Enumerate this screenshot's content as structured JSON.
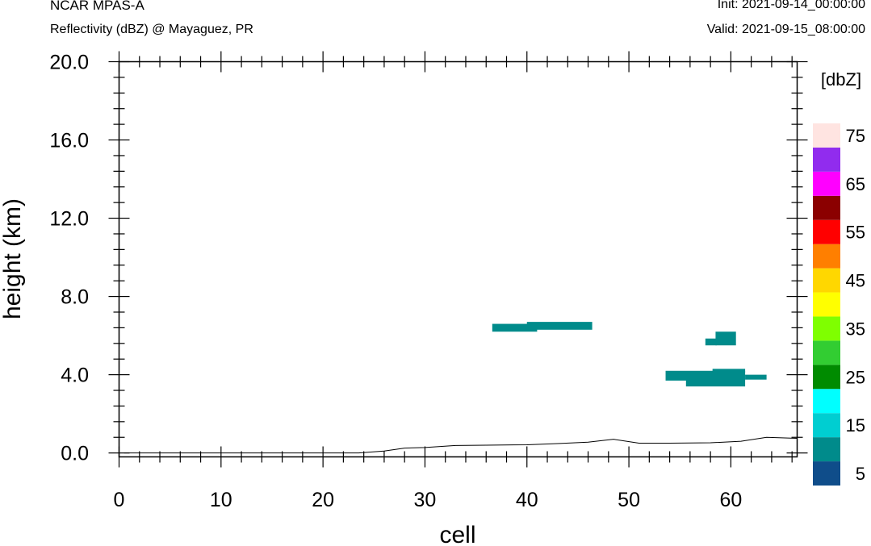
{
  "header": {
    "model": "NCAR MPAS-A",
    "subtitle": "Reflectivity (dBZ) @ Mayaguez, PR",
    "init": "Init: 2021-09-14_00:00:00",
    "valid": "Valid: 2021-09-15_08:00:00"
  },
  "chart_data": {
    "type": "heatmap",
    "xlabel": "cell",
    "ylabel": "height (km)",
    "xlim": [
      0,
      66.5
    ],
    "ylim": [
      -0.2,
      20.0
    ],
    "x_ticks": [
      {
        "v": 0,
        "label": "0"
      },
      {
        "v": 10,
        "label": "10"
      },
      {
        "v": 20,
        "label": "20"
      },
      {
        "v": 30,
        "label": "30"
      },
      {
        "v": 40,
        "label": "40"
      },
      {
        "v": 50,
        "label": "50"
      },
      {
        "v": 60,
        "label": "60"
      }
    ],
    "y_ticks": [
      {
        "v": 0,
        "label": "0.0"
      },
      {
        "v": 4,
        "label": "4.0"
      },
      {
        "v": 8,
        "label": "8.0"
      },
      {
        "v": 12,
        "label": "12.0"
      },
      {
        "v": 16,
        "label": "16.0"
      },
      {
        "v": 20,
        "label": "20.0"
      }
    ],
    "colorbar": {
      "unit_label": "[dbZ]",
      "colors": [
        "#0f4d8a",
        "#008b8b",
        "#00ced1",
        "#00ffff",
        "#008b00",
        "#32cd32",
        "#7fff00",
        "#ffff00",
        "#ffd700",
        "#ff7f00",
        "#ff0000",
        "#8b0000",
        "#ff00ff",
        "#912cee",
        "#ffe4e1"
      ],
      "labels": [
        "5",
        "15",
        "25",
        "35",
        "45",
        "55",
        "65",
        "75"
      ]
    },
    "echoes": [
      {
        "x0": 36.6,
        "x1": 41.0,
        "y0": 6.2,
        "y1": 6.6,
        "dbz": 5
      },
      {
        "x0": 40.0,
        "x1": 46.4,
        "y0": 6.3,
        "y1": 6.7,
        "dbz": 5
      },
      {
        "x0": 58.5,
        "x1": 60.5,
        "y0": 5.5,
        "y1": 6.2,
        "dbz": 5
      },
      {
        "x0": 57.5,
        "x1": 58.6,
        "y0": 5.5,
        "y1": 5.85,
        "dbz": 5
      },
      {
        "x0": 53.6,
        "x1": 61.4,
        "y0": 3.7,
        "y1": 4.2,
        "dbz": 5
      },
      {
        "x0": 55.6,
        "x1": 61.4,
        "y0": 3.4,
        "y1": 3.75,
        "dbz": 5
      },
      {
        "x0": 58.2,
        "x1": 61.4,
        "y0": 4.1,
        "y1": 4.3,
        "dbz": 5
      },
      {
        "x0": 61.4,
        "x1": 63.5,
        "y0": 3.75,
        "y1": 4.0,
        "dbz": 5
      }
    ],
    "terrain": {
      "x": [
        0.5,
        23.5,
        26,
        28,
        30,
        33,
        36,
        40,
        43,
        46,
        48.5,
        51,
        54,
        58,
        61,
        63.5,
        66.5
      ],
      "y": [
        0.0,
        0.0,
        0.1,
        0.25,
        0.28,
        0.38,
        0.4,
        0.42,
        0.48,
        0.55,
        0.7,
        0.5,
        0.5,
        0.52,
        0.6,
        0.8,
        0.75
      ]
    }
  }
}
